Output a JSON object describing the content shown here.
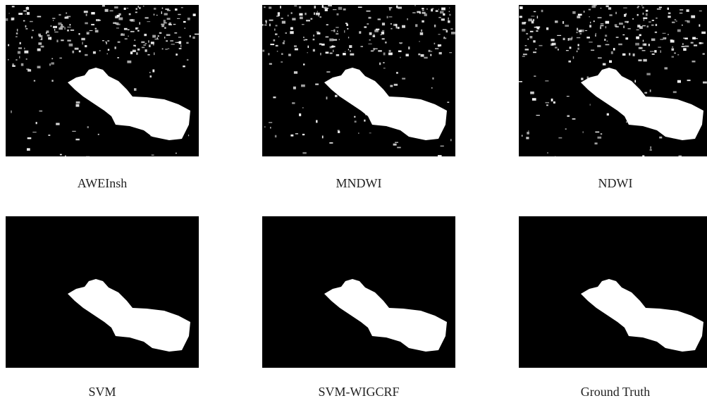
{
  "panels": [
    {
      "caption": "AWEInsh"
    },
    {
      "caption": "MNDWI"
    },
    {
      "caption": "NDWI"
    },
    {
      "caption": "SVM"
    },
    {
      "caption": "SVM-WIGCRF"
    },
    {
      "caption": "Ground Truth"
    }
  ]
}
